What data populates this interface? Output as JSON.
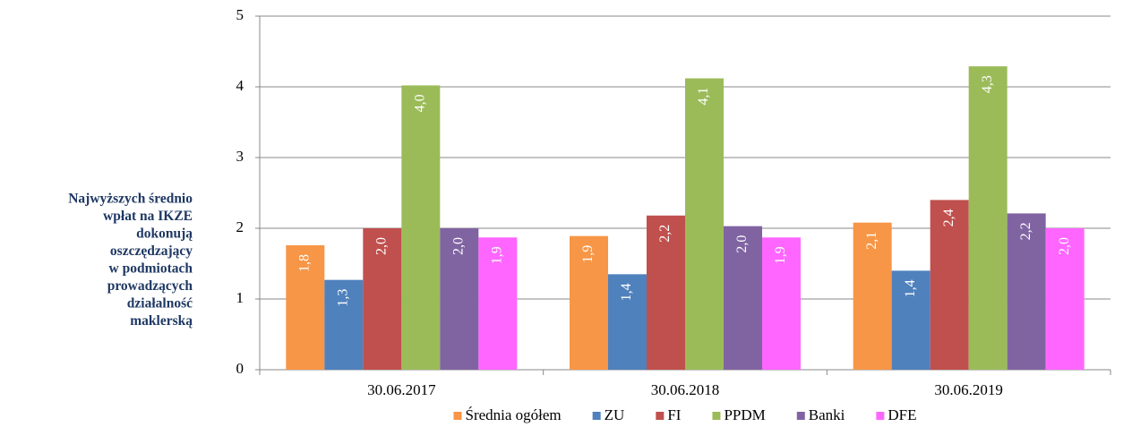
{
  "chart_data": {
    "type": "bar",
    "annotation": [
      "Najwyższych średnio",
      "wpłat na IKZE",
      "dokonują",
      "oszczędzający",
      "w podmiotach",
      "prowadzących",
      "działalność",
      "maklerską"
    ],
    "categories": [
      "30.06.2017",
      "30.06.2018",
      "30.06.2019"
    ],
    "series": [
      {
        "name": "Średnia ogółem",
        "color": "#f79646",
        "values": [
          1.76,
          1.89,
          2.08
        ],
        "value_labels": [
          "1,8",
          "1,9",
          "2,1"
        ]
      },
      {
        "name": "ZU",
        "color": "#4f81bd",
        "values": [
          1.27,
          1.35,
          1.4
        ],
        "value_labels": [
          "1,3",
          "1,4",
          "1,4"
        ]
      },
      {
        "name": "FI",
        "color": "#c0504d",
        "values": [
          2.0,
          2.18,
          2.4
        ],
        "value_labels": [
          "2,0",
          "2,2",
          "2,4"
        ]
      },
      {
        "name": "PPDM",
        "color": "#9bbb59",
        "values": [
          4.02,
          4.12,
          4.29
        ],
        "value_labels": [
          "4,0",
          "4,1",
          "4,3"
        ]
      },
      {
        "name": "Banki",
        "color": "#8064a2",
        "values": [
          2.0,
          2.03,
          2.21
        ],
        "value_labels": [
          "2,0",
          "2,0",
          "2,2"
        ]
      },
      {
        "name": "DFE",
        "color": "#ff66ff",
        "values": [
          1.87,
          1.87,
          2.0
        ],
        "value_labels": [
          "1,9",
          "1,9",
          "2,0"
        ]
      }
    ],
    "ylim": [
      0,
      5
    ],
    "yticks": [
      0,
      1,
      2,
      3,
      4,
      5
    ],
    "grid": true,
    "legend": "bottom"
  }
}
